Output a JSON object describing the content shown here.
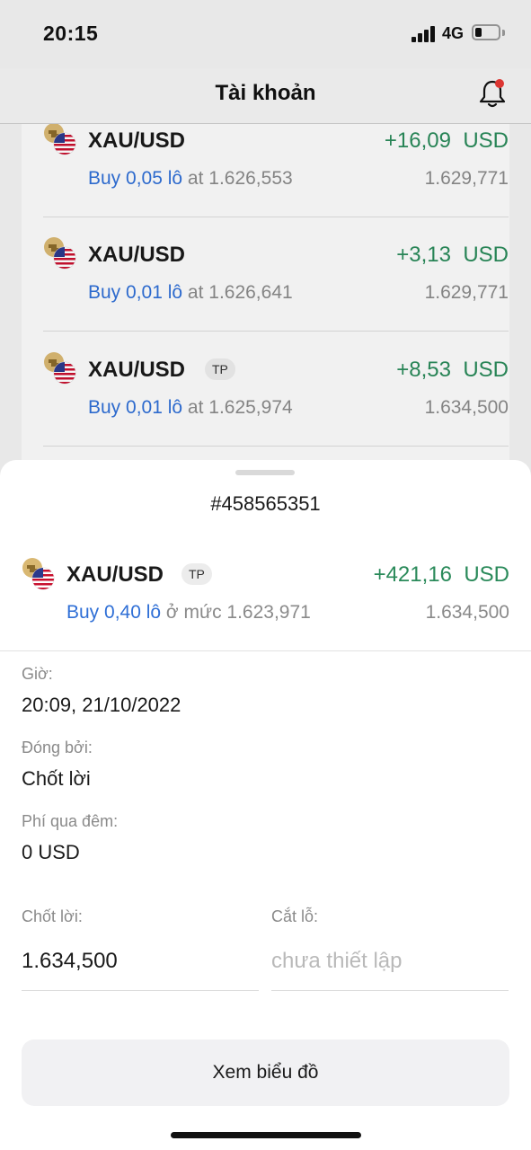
{
  "status_bar": {
    "time": "20:15",
    "network": "4G"
  },
  "nav": {
    "title": "Tài khoản"
  },
  "positions": [
    {
      "symbol": "XAU/USD",
      "badge": "",
      "profit": "+16,09  USD",
      "side_lots": "Buy 0,05 lô",
      "at_text": " at 1.626,553",
      "current_price": "1.629,771"
    },
    {
      "symbol": "XAU/USD",
      "badge": "",
      "profit": "+3,13  USD",
      "side_lots": "Buy 0,01 lô",
      "at_text": " at 1.626,641",
      "current_price": "1.629,771"
    },
    {
      "symbol": "XAU/USD",
      "badge": "TP",
      "profit": "+8,53  USD",
      "side_lots": "Buy 0,01 lô",
      "at_text": " at 1.625,974",
      "current_price": "1.634,500"
    }
  ],
  "sheet": {
    "ticket": "#458565351",
    "position": {
      "symbol": "XAU/USD",
      "badge": "TP",
      "profit": "+421,16  USD",
      "side_lots": "Buy 0,40 lô",
      "at_text": " ở mức 1.623,971",
      "current_price": "1.634,500"
    },
    "time_label": "Giờ:",
    "time_value": "20:09, 21/10/2022",
    "closed_by_label": "Đóng bởi:",
    "closed_by_value": "Chốt lời",
    "swap_label": "Phí qua đêm:",
    "swap_value": "0 USD",
    "take_profit_label": "Chốt lời:",
    "take_profit_value": "1.634,500",
    "stop_loss_label": "Cắt lỗ:",
    "stop_loss_placeholder": "chưa thiết lập",
    "chart_button": "Xem biểu đồ"
  },
  "icons": {
    "gold": "gold-bars-icon",
    "usd": "us-flag-icon",
    "bell": "bell-icon"
  },
  "colors": {
    "profit": "#2a8a5a",
    "link_blue": "#2f6fd6",
    "notification": "#e53935"
  }
}
